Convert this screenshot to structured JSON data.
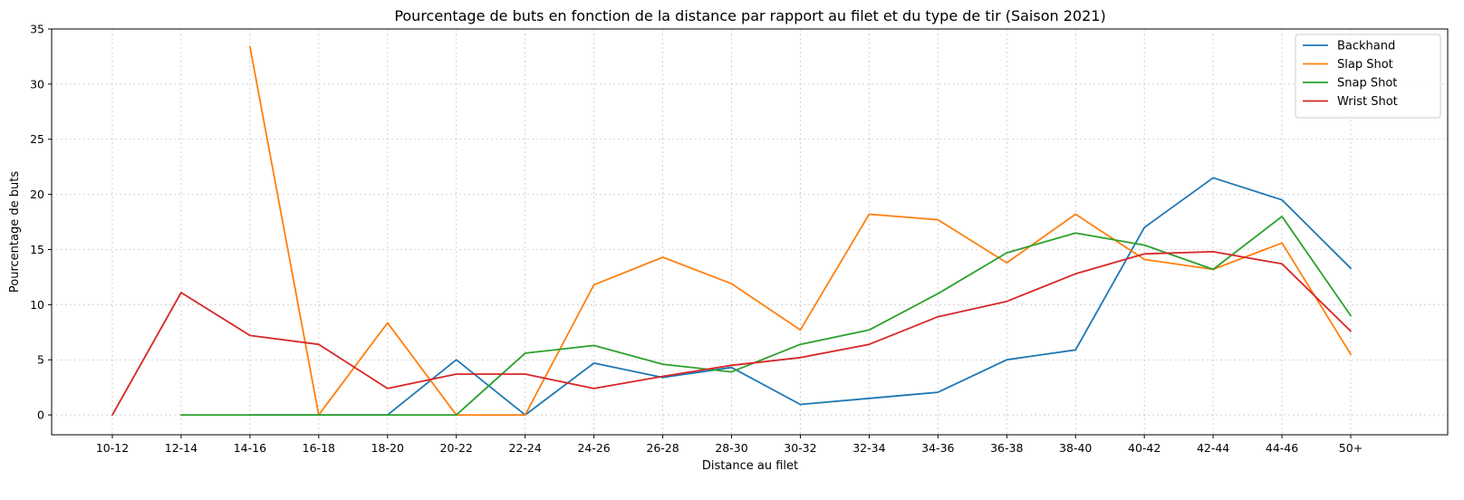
{
  "chart_data": {
    "type": "line",
    "title": "Pourcentage de buts en fonction de la distance par rapport au filet et du type de tir (Saison 2021)",
    "xlabel": "Distance au filet",
    "ylabel": "Pourcentage de buts",
    "categories": [
      "10-12",
      "12-14",
      "14-16",
      "16-18",
      "18-20",
      "20-22",
      "22-24",
      "24-26",
      "26-28",
      "28-30",
      "30-32",
      "32-34",
      "34-36",
      "36-38",
      "38-40",
      "40-42",
      "42-44",
      "44-46",
      "50+"
    ],
    "ylim": [
      -1.8,
      35
    ],
    "yticks": [
      0,
      5,
      10,
      15,
      20,
      25,
      30,
      35
    ],
    "grid": true,
    "legend_position": "top-right",
    "series": [
      {
        "name": "Backhand",
        "color": "#1f77b4",
        "values": [
          null,
          null,
          0,
          0,
          0,
          5.0,
          0,
          4.7,
          3.4,
          4.3,
          0.95,
          1.5,
          2.05,
          5.0,
          5.9,
          17.0,
          21.5,
          19.5,
          13.3
        ]
      },
      {
        "name": "Slap Shot",
        "color": "#ff7f0e",
        "values": [
          null,
          null,
          33.4,
          0,
          8.35,
          0,
          0,
          11.8,
          14.3,
          11.9,
          7.7,
          18.2,
          17.7,
          13.8,
          18.2,
          14.1,
          13.2,
          15.6,
          5.5
        ]
      },
      {
        "name": "Snap Shot",
        "color": "#2ca02c",
        "values": [
          null,
          0,
          0,
          0,
          0,
          0,
          5.6,
          6.3,
          4.6,
          3.9,
          6.4,
          7.7,
          11.0,
          14.7,
          16.5,
          15.4,
          13.2,
          18.0,
          9.0
        ]
      },
      {
        "name": "Wrist Shot",
        "color": "#d62728",
        "values": [
          0,
          11.1,
          7.2,
          6.4,
          2.4,
          3.7,
          3.7,
          2.4,
          3.5,
          4.5,
          5.2,
          6.4,
          8.9,
          10.3,
          12.8,
          14.6,
          14.8,
          13.7,
          7.6
        ]
      }
    ]
  }
}
